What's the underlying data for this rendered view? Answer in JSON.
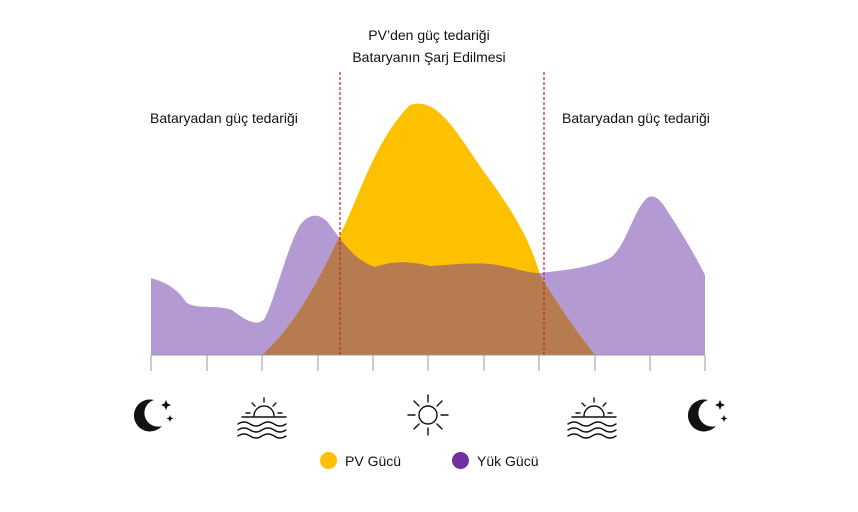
{
  "labels": {
    "left_title": "Bataryadan güç tedariği",
    "right_title": "Bataryadan güç tedariği",
    "center_line1": "PV’den güç tedariği",
    "center_line2": "Bataryanın Şarj Edilmesi"
  },
  "legend": [
    {
      "label": "PV Gücü",
      "color": "#FFC000"
    },
    {
      "label": "Yük Gücü",
      "color": "#7030A0"
    }
  ],
  "colors": {
    "pv_area": "#FDC100",
    "load_area": "#B49AD2",
    "overlap_area": "#B67C50",
    "divider": "#C0272D"
  },
  "icons": [
    "moon-stars-icon",
    "sunrise-icon",
    "sun-icon",
    "sunset-icon",
    "moon-stars-icon"
  ]
}
